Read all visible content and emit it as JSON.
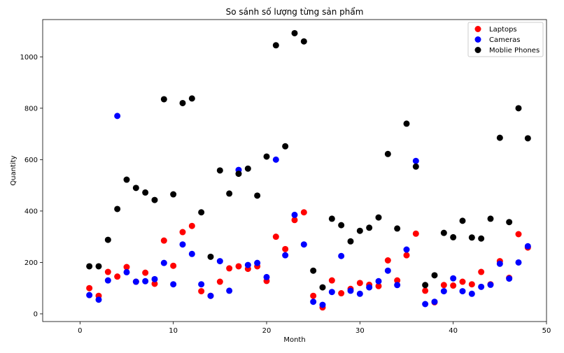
{
  "chart_data": {
    "type": "scatter",
    "title": "So sánh số lượng từng sản phẩm",
    "xlabel": "Month",
    "ylabel": "Quantity",
    "xlim": [
      -4,
      50
    ],
    "ylim": [
      -30,
      1145
    ],
    "xticks": [
      0,
      10,
      20,
      30,
      40,
      50
    ],
    "yticks": [
      0,
      200,
      400,
      600,
      800,
      1000
    ],
    "grid": false,
    "legend_position": "top-right",
    "x": [
      1,
      2,
      3,
      4,
      5,
      6,
      7,
      8,
      9,
      10,
      11,
      12,
      13,
      14,
      15,
      16,
      17,
      18,
      19,
      20,
      21,
      22,
      23,
      24,
      25,
      26,
      27,
      28,
      29,
      30,
      31,
      32,
      33,
      34,
      35,
      36,
      37,
      38,
      39,
      40,
      41,
      42,
      43,
      44,
      45,
      46,
      47,
      48
    ],
    "series": [
      {
        "name": "Laptops",
        "color": "#ff0000",
        "values": [
          100,
          70,
          163,
          145,
          182,
          125,
          160,
          117,
          285,
          187,
          318,
          342,
          88,
          70,
          125,
          177,
          185,
          175,
          185,
          128,
          300,
          252,
          365,
          395,
          70,
          25,
          130,
          80,
          97,
          120,
          113,
          108,
          208,
          130,
          228,
          312,
          90,
          45,
          112,
          110,
          125,
          115,
          163,
          115,
          205,
          140,
          310,
          258
        ]
      },
      {
        "name": "Cameras",
        "color": "#0000ff",
        "values": [
          73,
          55,
          130,
          770,
          162,
          125,
          127,
          135,
          198,
          115,
          270,
          233,
          115,
          70,
          205,
          90,
          560,
          190,
          198,
          143,
          600,
          228,
          385,
          270,
          47,
          35,
          85,
          225,
          90,
          78,
          103,
          127,
          168,
          112,
          250,
          595,
          38,
          47,
          88,
          138,
          88,
          78,
          105,
          113,
          195,
          137,
          200,
          263
        ]
      },
      {
        "name": "Moblie Phones",
        "color": "#000000",
        "values": [
          185,
          185,
          288,
          408,
          522,
          490,
          472,
          443,
          835,
          465,
          820,
          838,
          395,
          222,
          558,
          468,
          545,
          565,
          460,
          612,
          1045,
          652,
          1092,
          1060,
          168,
          103,
          370,
          345,
          282,
          323,
          335,
          375,
          622,
          332,
          740,
          573,
          112,
          150,
          315,
          298,
          362,
          297,
          293,
          370,
          685,
          357,
          800,
          683
        ]
      }
    ]
  }
}
